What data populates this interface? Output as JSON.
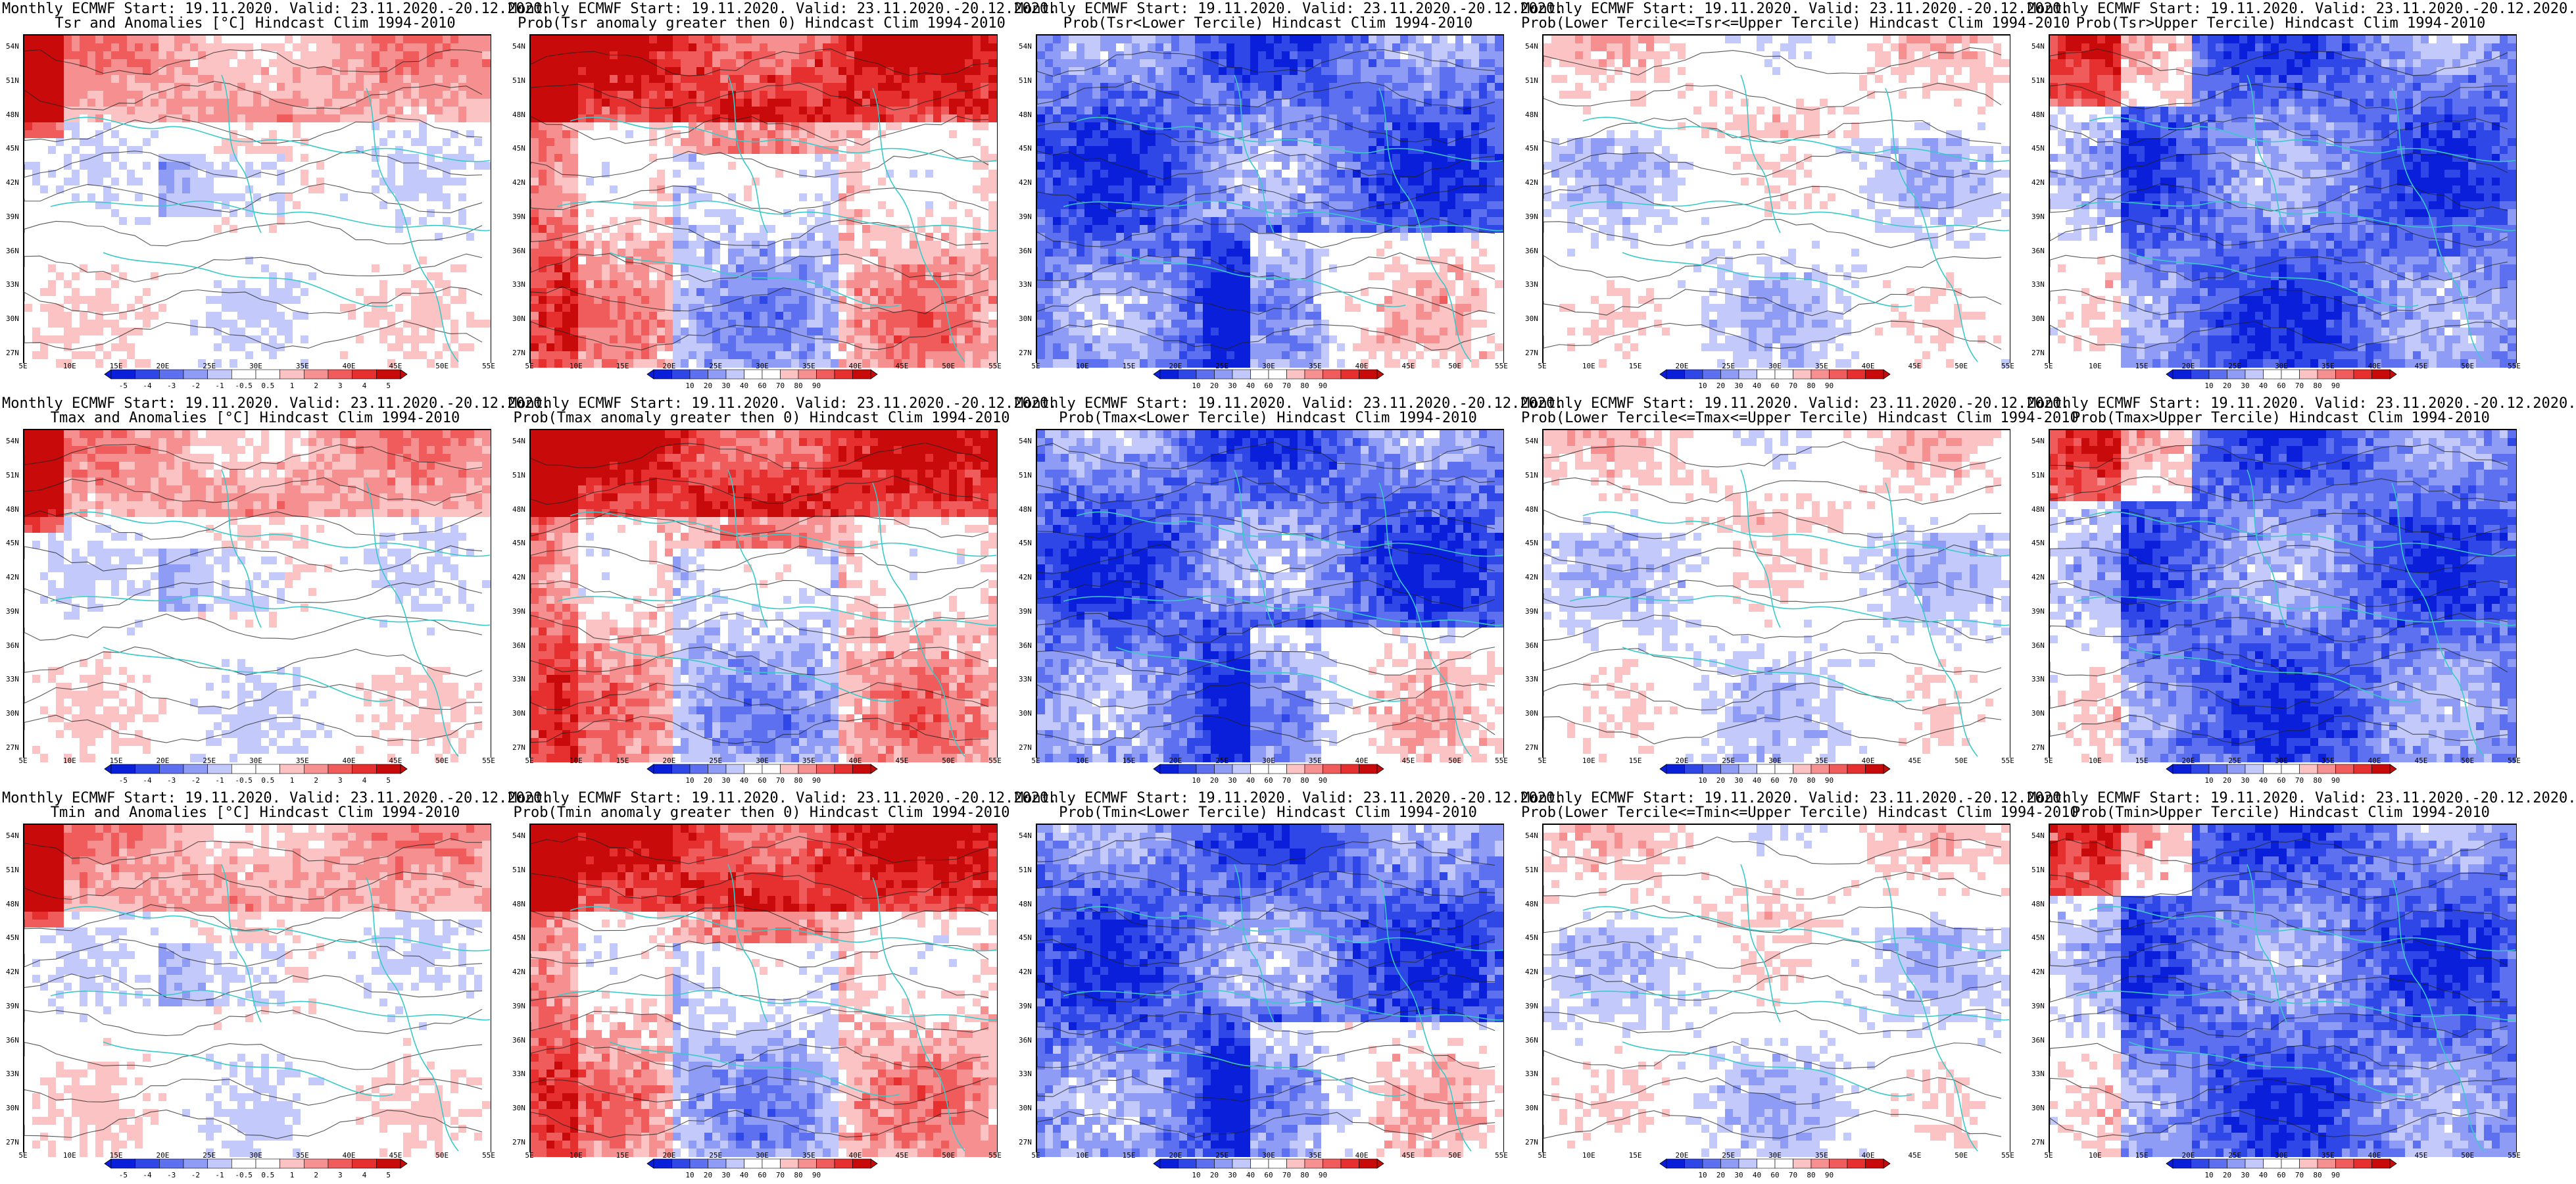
{
  "colors": {
    "scale": [
      "#0a1fd9",
      "#2f47e6",
      "#5c70f0",
      "#8f9cf6",
      "#c3c9fb",
      "#ffffff",
      "#ffffff",
      "#fbc3c3",
      "#f68f8f",
      "#f05c5c",
      "#e62f2f",
      "#c80a0a"
    ],
    "coast": "#39c9c9",
    "contour": "#222222"
  },
  "lat_labels": [
    "54N",
    "51N",
    "48N",
    "45N",
    "42N",
    "39N",
    "36N",
    "33N",
    "30N",
    "27N"
  ],
  "lon_labels": [
    "5E",
    "10E",
    "15E",
    "20E",
    "25E",
    "30E",
    "35E",
    "40E",
    "45E",
    "50E",
    "55E"
  ],
  "anom_ticks": [
    "-5",
    "-4",
    "-3",
    "-2",
    "-1",
    "-0.5",
    "0.5",
    "1",
    "2",
    "3",
    "4",
    "5"
  ],
  "prob_ticks": [
    "10",
    "20",
    "30",
    "40",
    "60",
    "70",
    "80",
    "90"
  ],
  "panels": [
    {
      "t1": "Monthly ECMWF Start: 19.11.2020. Valid: 23.11.2020.-20.12.2020.",
      "t2": "Tsr and Anomalies [°C] Hindcast Clim 1994-2010",
      "kind": "anom",
      "field": "mild"
    },
    {
      "t1": "Monthly ECMWF Start: 19.11.2020. Valid: 23.11.2020.-20.12.2020.",
      "t2": "Prob(Tsr anomaly greater then 0) Hindcast Clim 1994-2010",
      "kind": "prob",
      "field": "warm"
    },
    {
      "t1": "Monthly ECMWF Start: 19.11.2020. Valid: 23.11.2020.-20.12.2020.",
      "t2": "Prob(Tsr<Lower Tercile) Hindcast Clim 1994-2010",
      "kind": "prob",
      "field": "cold"
    },
    {
      "t1": "Monthly ECMWF Start: 19.11.2020. Valid: 23.11.2020.-20.12.2020.",
      "t2": "Prob(Lower Tercile<=Tsr<=Upper Tercile) Hindcast Clim 1994-2010",
      "kind": "prob",
      "field": "neutral"
    },
    {
      "t1": "Monthly ECMWF Start: 19.11.2020. Valid: 23.11.2020.-20.12.2020.",
      "t2": "Prob(Tsr>Upper Tercile) Hindcast Clim 1994-2010",
      "kind": "prob",
      "field": "upper"
    },
    {
      "t1": "Monthly ECMWF Start: 19.11.2020. Valid: 23.11.2020.-20.12.2020.",
      "t2": "Tmax and Anomalies [°C] Hindcast Clim 1994-2010",
      "kind": "anom",
      "field": "mild"
    },
    {
      "t1": "Monthly ECMWF Start: 19.11.2020. Valid: 23.11.2020.-20.12.2020.",
      "t2": "Prob(Tmax anomaly greater then 0) Hindcast Clim 1994-2010",
      "kind": "prob",
      "field": "warm"
    },
    {
      "t1": "Monthly ECMWF Start: 19.11.2020. Valid: 23.11.2020.-20.12.2020.",
      "t2": "Prob(Tmax<Lower Tercile) Hindcast Clim 1994-2010",
      "kind": "prob",
      "field": "cold"
    },
    {
      "t1": "Monthly ECMWF Start: 19.11.2020. Valid: 23.11.2020.-20.12.2020.",
      "t2": "Prob(Lower Tercile<=Tmax<=Upper Tercile) Hindcast Clim 1994-2010",
      "kind": "prob",
      "field": "neutral"
    },
    {
      "t1": "Monthly ECMWF Start: 19.11.2020. Valid: 23.11.2020.-20.12.2020.",
      "t2": "Prob(Tmax>Upper Tercile) Hindcast Clim 1994-2010",
      "kind": "prob",
      "field": "upper"
    },
    {
      "t1": "Monthly ECMWF Start: 19.11.2020. Valid: 23.11.2020.-20.12.2020.",
      "t2": "Tmin and Anomalies [°C] Hindcast Clim 1994-2010",
      "kind": "anom",
      "field": "mild"
    },
    {
      "t1": "Monthly ECMWF Start: 19.11.2020. Valid: 23.11.2020.-20.12.2020.",
      "t2": "Prob(Tmin anomaly greater then 0) Hindcast Clim 1994-2010",
      "kind": "prob",
      "field": "warm"
    },
    {
      "t1": "Monthly ECMWF Start: 19.11.2020. Valid: 23.11.2020.-20.12.2020.",
      "t2": "Prob(Tmin<Lower Tercile) Hindcast Clim 1994-2010",
      "kind": "prob",
      "field": "cold"
    },
    {
      "t1": "Monthly ECMWF Start: 19.11.2020. Valid: 23.11.2020.-20.12.2020.",
      "t2": "Prob(Lower Tercile<=Tmin<=Upper Tercile) Hindcast Clim 1994-2010",
      "kind": "prob",
      "field": "neutral"
    },
    {
      "t1": "Monthly ECMWF Start: 19.11.2020. Valid: 23.11.2020.-20.12.2020.",
      "t2": "Prob(Tmin>Upper Tercile) Hindcast Clim 1994-2010",
      "kind": "prob",
      "field": "upper"
    }
  ]
}
